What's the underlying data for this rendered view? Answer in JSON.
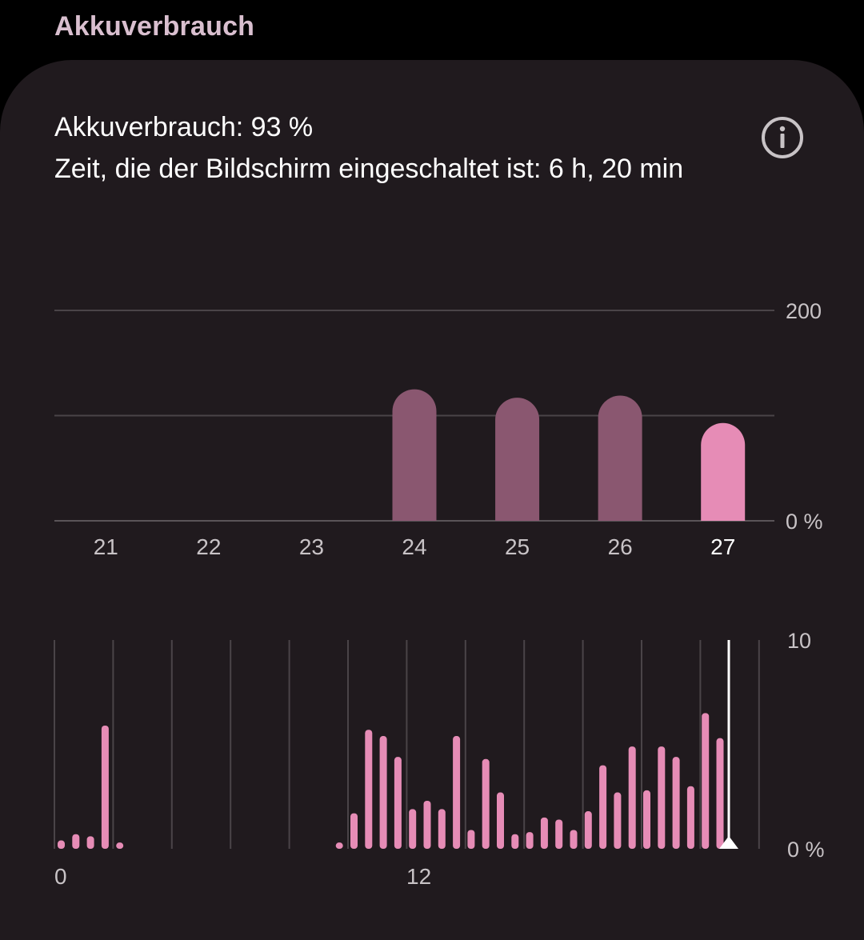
{
  "header": {
    "title": "Akkuverbrauch"
  },
  "summary": {
    "usage_line": "Akkuverbrauch: 93 %",
    "screen_time_line": "Zeit, die der Bildschirm eingeschaltet ist: 6 h, 20 min"
  },
  "icons": {
    "info": "info-icon"
  },
  "colors": {
    "background": "#000000",
    "card": "#201a1e",
    "bar_past": "#8a5770",
    "bar_selected": "#e68cb6",
    "gridline": "#4a4448",
    "text_primary": "#ffffff",
    "text_secondary": "#c8c3c6",
    "header_text": "#d9bfcf"
  },
  "chart_data": [
    {
      "type": "bar",
      "categories": [
        "21",
        "22",
        "23",
        "24",
        "25",
        "26",
        "27"
      ],
      "values": [
        0,
        0,
        0,
        125,
        117,
        119,
        93
      ],
      "selected_category": "27",
      "y_tick_labels": [
        "200",
        "0 %"
      ],
      "ylim": [
        0,
        200
      ],
      "grid": true
    },
    {
      "type": "bar",
      "x": [
        0,
        0.5,
        1,
        1.5,
        2,
        2.5,
        3,
        3.5,
        4,
        4.5,
        5,
        5.5,
        6,
        6.5,
        7,
        7.5,
        8,
        8.5,
        9,
        9.5,
        10,
        10.5,
        11,
        11.5,
        12,
        12.5,
        13,
        13.5,
        14,
        14.5,
        15,
        15.5,
        16,
        16.5,
        17,
        17.5,
        18,
        18.5,
        19,
        19.5,
        20,
        20.5,
        21,
        21.5,
        22,
        22.5
      ],
      "values": [
        0.4,
        0.7,
        0.6,
        5.9,
        0.3,
        0,
        0,
        0,
        0,
        0,
        0,
        0,
        0,
        0,
        0,
        0,
        0,
        0,
        0,
        0.3,
        1.7,
        5.7,
        5.4,
        4.4,
        1.9,
        2.3,
        1.9,
        5.4,
        0.9,
        4.3,
        2.7,
        0.7,
        0.8,
        1.5,
        1.4,
        0.9,
        1.8,
        4.0,
        2.7,
        4.9,
        2.8,
        4.9,
        4.4,
        3.0,
        6.5,
        5.3
      ],
      "x_tick_labels": [
        "0",
        "12"
      ],
      "y_tick_labels": [
        "10",
        "0 %"
      ],
      "ylim": [
        0,
        10
      ],
      "current_time_marker": 22.9,
      "grid": true
    }
  ]
}
